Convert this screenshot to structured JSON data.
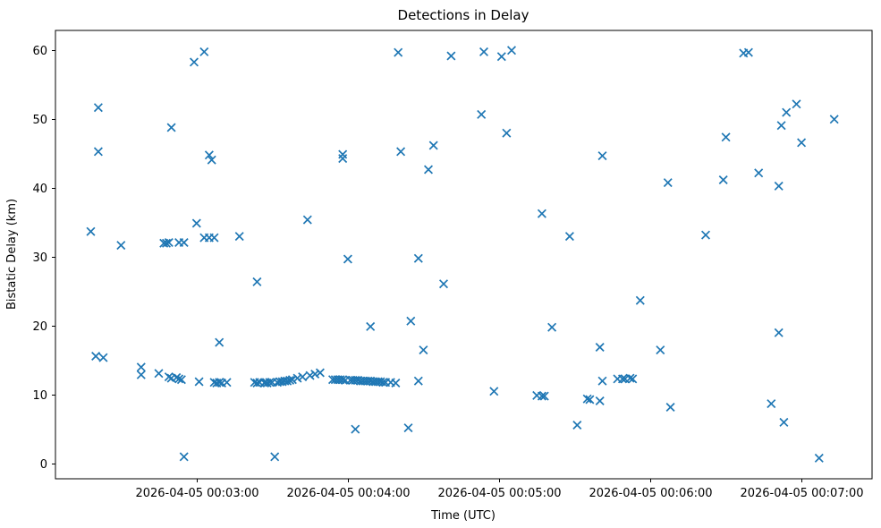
{
  "chart_data": {
    "type": "scatter",
    "title": "Detections in Delay",
    "xlabel": "Time (UTC)",
    "ylabel": "Bistatic Delay (km)",
    "marker": "x",
    "marker_color": "#1f77b4",
    "background_color": "#ffffff",
    "spine_color": "#000000",
    "grid": false,
    "legend": null,
    "x_unit": "seconds after 2026-04-05 00:00:00 UTC",
    "xlim": [
      124,
      448
    ],
    "ylim": [
      -2.2,
      62.9
    ],
    "x_ticks": [
      {
        "t": 180,
        "label": "2026-04-05 00:03:00"
      },
      {
        "t": 240,
        "label": "2026-04-05 00:04:00"
      },
      {
        "t": 300,
        "label": "2026-04-05 00:05:00"
      },
      {
        "t": 360,
        "label": "2026-04-05 00:06:00"
      },
      {
        "t": 420,
        "label": "2026-04-05 00:07:00"
      }
    ],
    "y_ticks": [
      {
        "v": 0,
        "label": "0"
      },
      {
        "v": 10,
        "label": "10"
      },
      {
        "v": 20,
        "label": "20"
      },
      {
        "v": 30,
        "label": "30"
      },
      {
        "v": 40,
        "label": "40"
      },
      {
        "v": 50,
        "label": "50"
      },
      {
        "v": 60,
        "label": "60"
      }
    ],
    "points": [
      [
        138,
        33.7
      ],
      [
        140,
        15.6
      ],
      [
        141,
        51.7
      ],
      [
        141,
        45.3
      ],
      [
        143,
        15.4
      ],
      [
        150,
        31.7
      ],
      [
        158,
        14.0
      ],
      [
        158,
        12.9
      ],
      [
        165,
        13.1
      ],
      [
        167,
        32.0
      ],
      [
        168,
        32.0
      ],
      [
        169,
        32.1
      ],
      [
        169,
        12.6
      ],
      [
        170,
        48.8
      ],
      [
        170,
        12.4
      ],
      [
        172,
        12.5
      ],
      [
        173,
        32.1
      ],
      [
        173,
        12.3
      ],
      [
        174,
        12.2
      ],
      [
        175,
        32.1
      ],
      [
        175,
        1.0
      ],
      [
        179,
        58.3
      ],
      [
        180,
        34.9
      ],
      [
        181,
        11.9
      ],
      [
        183,
        59.8
      ],
      [
        183,
        32.8
      ],
      [
        185,
        44.8
      ],
      [
        185,
        32.8
      ],
      [
        186,
        44.1
      ],
      [
        187,
        32.8
      ],
      [
        187,
        11.8
      ],
      [
        188,
        11.7
      ],
      [
        189,
        17.6
      ],
      [
        189,
        11.8
      ],
      [
        190,
        11.7
      ],
      [
        192,
        11.8
      ],
      [
        197,
        33.0
      ],
      [
        203,
        11.8
      ],
      [
        204,
        26.4
      ],
      [
        204,
        11.7
      ],
      [
        205,
        11.8
      ],
      [
        207,
        11.7
      ],
      [
        207,
        11.8
      ],
      [
        208,
        11.7
      ],
      [
        209,
        11.8
      ],
      [
        210,
        11.8
      ],
      [
        211,
        1.0
      ],
      [
        212,
        11.8
      ],
      [
        213,
        11.9
      ],
      [
        214,
        11.9
      ],
      [
        215,
        12.0
      ],
      [
        216,
        12.0
      ],
      [
        217,
        12.1
      ],
      [
        218,
        12.2
      ],
      [
        220,
        12.4
      ],
      [
        222,
        12.6
      ],
      [
        224,
        35.4
      ],
      [
        225,
        12.8
      ],
      [
        227,
        13.0
      ],
      [
        229,
        13.2
      ],
      [
        234,
        12.2
      ],
      [
        235,
        12.2
      ],
      [
        236,
        12.2
      ],
      [
        237,
        12.2
      ],
      [
        238,
        44.9
      ],
      [
        238,
        44.3
      ],
      [
        238,
        12.2
      ],
      [
        239,
        12.1
      ],
      [
        240,
        29.7
      ],
      [
        241,
        12.1
      ],
      [
        242,
        12.1
      ],
      [
        243,
        12.1
      ],
      [
        243,
        5.0
      ],
      [
        244,
        12.1
      ],
      [
        245,
        12.0
      ],
      [
        246,
        12.0
      ],
      [
        247,
        12.0
      ],
      [
        248,
        12.0
      ],
      [
        249,
        19.9
      ],
      [
        249,
        12.0
      ],
      [
        250,
        11.9
      ],
      [
        251,
        11.9
      ],
      [
        252,
        11.9
      ],
      [
        253,
        11.9
      ],
      [
        254,
        11.8
      ],
      [
        255,
        11.8
      ],
      [
        257,
        11.8
      ],
      [
        259,
        11.7
      ],
      [
        260,
        59.7
      ],
      [
        261,
        45.3
      ],
      [
        264,
        5.2
      ],
      [
        265,
        20.7
      ],
      [
        268,
        29.8
      ],
      [
        268,
        12.0
      ],
      [
        270,
        16.5
      ],
      [
        272,
        42.7
      ],
      [
        274,
        46.2
      ],
      [
        278,
        26.1
      ],
      [
        281,
        59.2
      ],
      [
        293,
        50.7
      ],
      [
        294,
        59.8
      ],
      [
        298,
        10.5
      ],
      [
        301,
        59.1
      ],
      [
        303,
        48.0
      ],
      [
        305,
        60.0
      ],
      [
        315,
        9.9
      ],
      [
        317,
        36.3
      ],
      [
        317,
        9.8
      ],
      [
        318,
        9.8
      ],
      [
        321,
        19.8
      ],
      [
        328,
        33.0
      ],
      [
        331,
        5.6
      ],
      [
        335,
        9.4
      ],
      [
        336,
        9.3
      ],
      [
        340,
        16.9
      ],
      [
        340,
        9.1
      ],
      [
        341,
        44.7
      ],
      [
        341,
        12.0
      ],
      [
        347,
        12.3
      ],
      [
        349,
        12.3
      ],
      [
        350,
        12.3
      ],
      [
        352,
        12.4
      ],
      [
        353,
        12.3
      ],
      [
        356,
        23.7
      ],
      [
        364,
        16.5
      ],
      [
        367,
        40.8
      ],
      [
        368,
        8.2
      ],
      [
        382,
        33.2
      ],
      [
        389,
        41.2
      ],
      [
        390,
        47.4
      ],
      [
        397,
        59.6
      ],
      [
        399,
        59.7
      ],
      [
        403,
        42.2
      ],
      [
        408,
        8.7
      ],
      [
        411,
        40.3
      ],
      [
        411,
        19.0
      ],
      [
        412,
        49.1
      ],
      [
        413,
        6.0
      ],
      [
        414,
        51.0
      ],
      [
        418,
        52.2
      ],
      [
        420,
        46.6
      ],
      [
        427,
        0.8
      ],
      [
        433,
        50.0
      ]
    ]
  }
}
